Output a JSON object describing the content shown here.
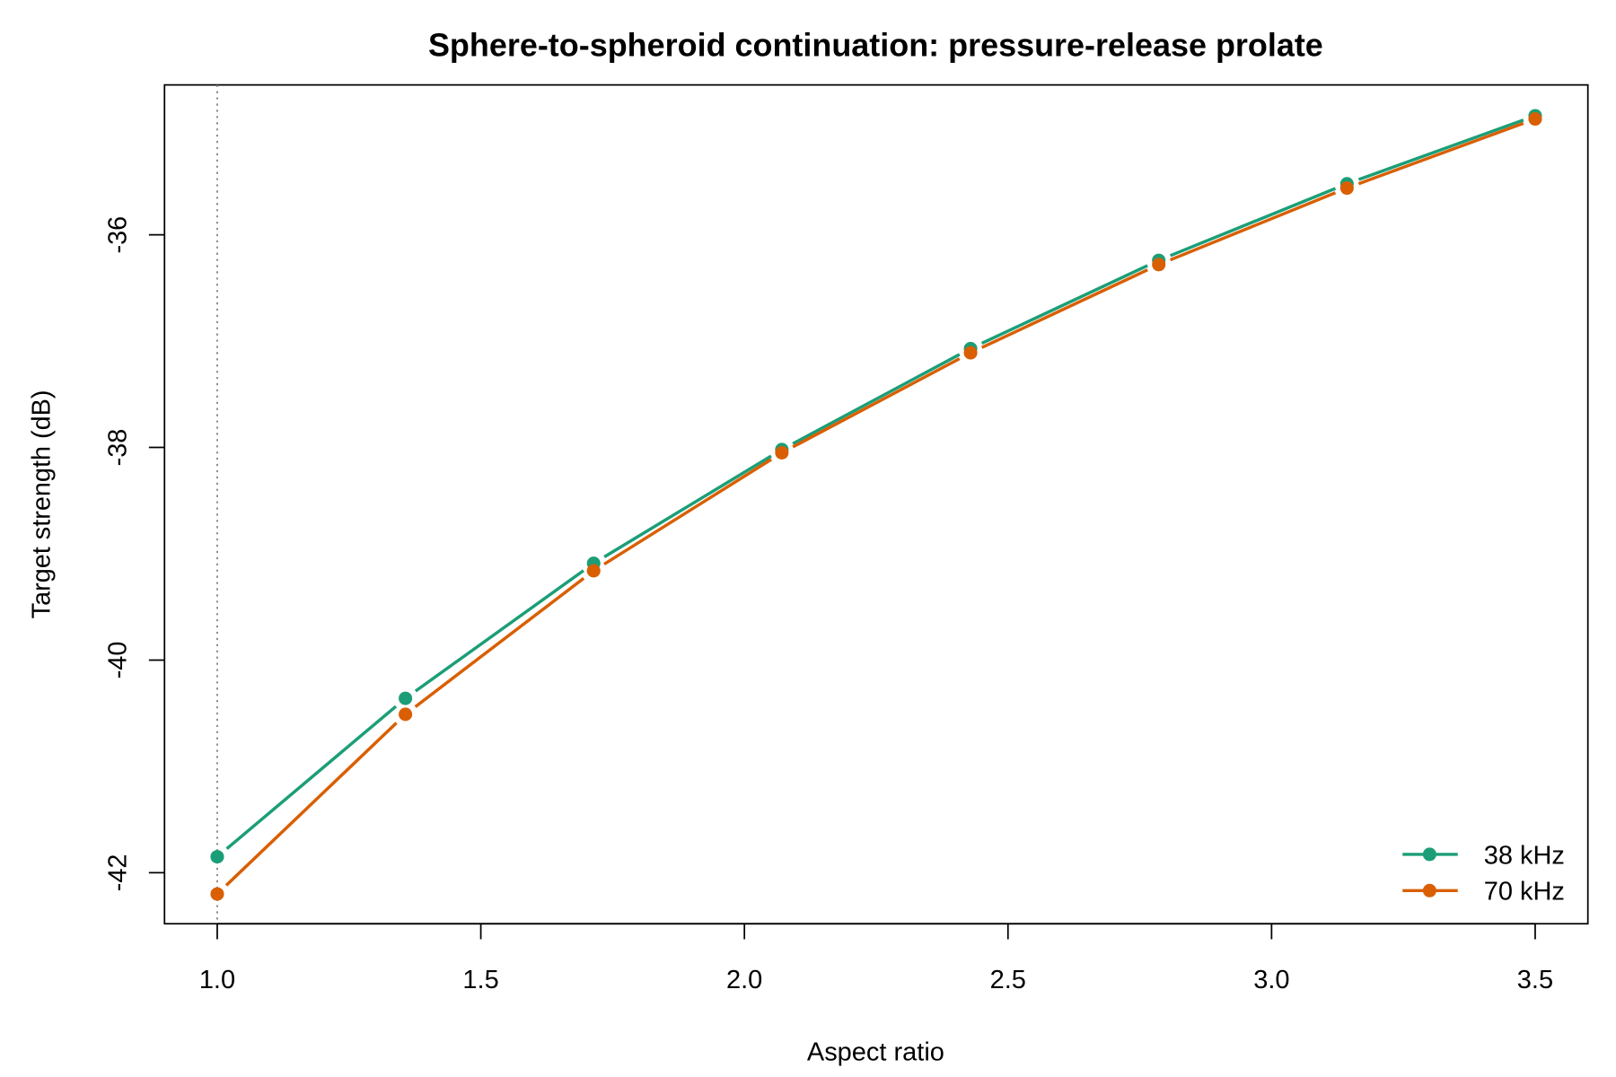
{
  "chart_data": {
    "type": "line",
    "title": "Sphere-to-spheroid continuation: pressure-release prolate",
    "xlabel": "Aspect ratio",
    "ylabel": "Target strength (dB)",
    "xlim": [
      0.9,
      3.6
    ],
    "ylim": [
      -42.48,
      -34.59
    ],
    "xticks": [
      1.0,
      1.5,
      2.0,
      2.5,
      3.0,
      3.5
    ],
    "xtick_labels": [
      "1.0",
      "1.5",
      "2.0",
      "2.5",
      "3.0",
      "3.5"
    ],
    "yticks": [
      -36,
      -38,
      -40,
      -42
    ],
    "ytick_labels": [
      "-36",
      "-38",
      "-40",
      "-42"
    ],
    "grid": false,
    "reference_line": {
      "x": 1.0,
      "style": "dotted",
      "color": "#808080"
    },
    "legend_position": "bottom-right",
    "x": [
      1.0,
      1.357,
      1.714,
      2.071,
      2.429,
      2.786,
      3.143,
      3.5
    ],
    "series": [
      {
        "name": "38 kHz",
        "color": "#1b9e77",
        "values": [
          -41.85,
          -40.36,
          -39.09,
          -38.02,
          -37.07,
          -36.24,
          -35.52,
          -34.88
        ]
      },
      {
        "name": "70 kHz",
        "color": "#d95f02",
        "values": [
          -42.2,
          -40.51,
          -39.16,
          -38.05,
          -37.11,
          -36.28,
          -35.56,
          -34.91
        ]
      }
    ]
  }
}
